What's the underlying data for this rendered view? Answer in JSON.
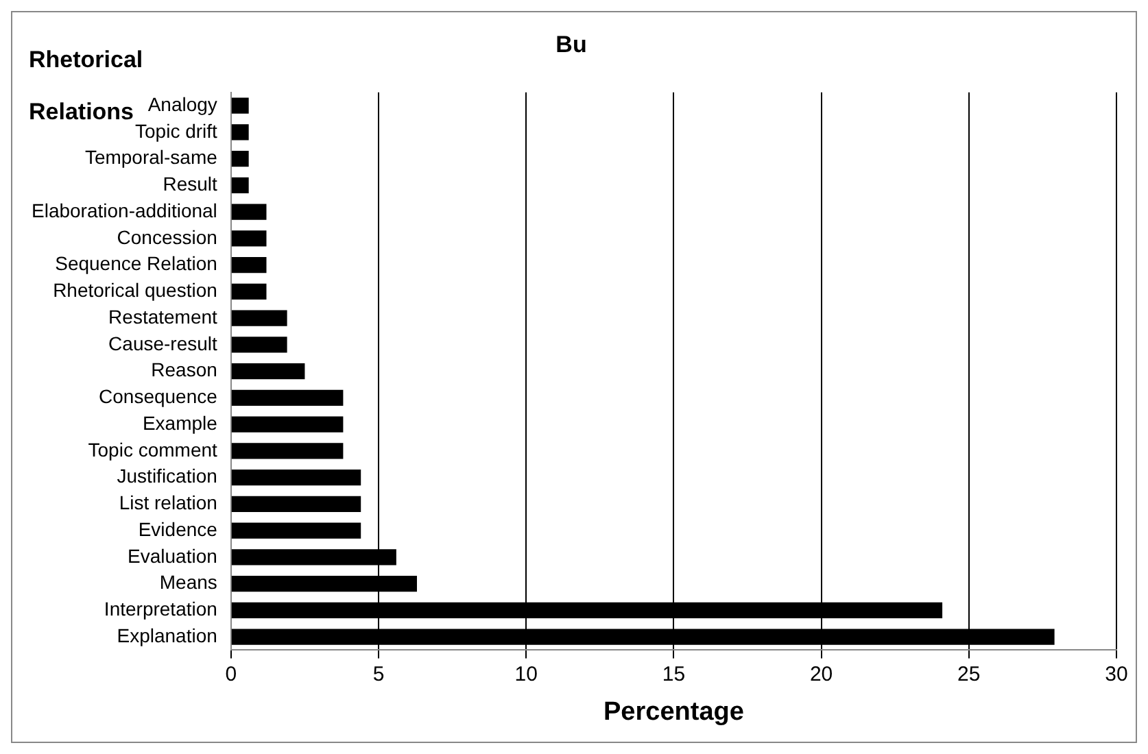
{
  "chart_data": {
    "type": "bar",
    "orientation": "horizontal",
    "title": "Bu",
    "xlabel": "Percentage",
    "ylabel": "Rhetorical Relations",
    "categories": [
      "Analogy",
      "Topic drift",
      "Temporal-same",
      "Result",
      "Elaboration-additional",
      "Concession",
      "Sequence Relation",
      "Rhetorical question",
      "Restatement",
      "Cause-result",
      "Reason",
      "Consequence",
      "Example",
      "Topic comment",
      "Justification",
      "List relation",
      "Evidence",
      "Evaluation",
      "Means",
      "Interpretation",
      "Explanation"
    ],
    "values": [
      0.6,
      0.6,
      0.6,
      0.6,
      1.2,
      1.2,
      1.2,
      1.2,
      1.9,
      1.9,
      2.5,
      3.8,
      3.8,
      3.8,
      4.4,
      4.4,
      4.4,
      5.6,
      6.3,
      24.1,
      27.9
    ],
    "color": "#000000",
    "xlim": [
      0,
      30
    ],
    "xticks": [
      0,
      5,
      10,
      15,
      20,
      25,
      30
    ],
    "grid": "x",
    "legend": false
  }
}
